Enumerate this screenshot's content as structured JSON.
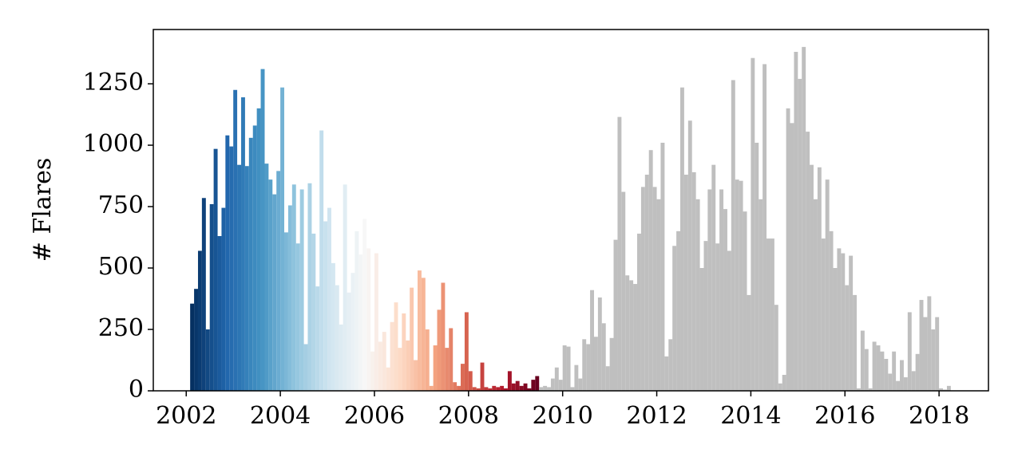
{
  "chart_data": {
    "type": "hist",
    "y_label": "# Flares",
    "xlim": [
      2001.3,
      2019.05
    ],
    "ylim": [
      0,
      1471
    ],
    "xticks": [
      2002,
      2004,
      2006,
      2008,
      2010,
      2012,
      2014,
      2016,
      2018
    ],
    "yticks": [
      0,
      250,
      500,
      750,
      1000,
      1250
    ],
    "series": [
      {
        "colormap": [
          "#053061",
          "#2166ac",
          "#4393c3",
          "#92c5de",
          "#d1e5f0",
          "#f7f7f7",
          "#fddbc7",
          "#f4a582",
          "#d6604d",
          "#b2182b",
          "#67001f"
        ],
        "bins": [
          2002.083,
          2002.167,
          2002.25,
          2002.333,
          2002.417,
          2002.5,
          2002.583,
          2002.667,
          2002.75,
          2002.833,
          2002.917,
          2003,
          2003.083,
          2003.167,
          2003.25,
          2003.333,
          2003.417,
          2003.5,
          2003.583,
          2003.667,
          2003.75,
          2003.833,
          2003.917,
          2004,
          2004.083,
          2004.167,
          2004.25,
          2004.333,
          2004.417,
          2004.5,
          2004.583,
          2004.667,
          2004.75,
          2004.833,
          2004.917,
          2005,
          2005.083,
          2005.167,
          2005.25,
          2005.333,
          2005.417,
          2005.5,
          2005.583,
          2005.667,
          2005.75,
          2005.833,
          2005.917,
          2006,
          2006.083,
          2006.167,
          2006.25,
          2006.333,
          2006.417,
          2006.5,
          2006.583,
          2006.667,
          2006.75,
          2006.833,
          2006.917,
          2007,
          2007.083,
          2007.167,
          2007.25,
          2007.333,
          2007.417,
          2007.5,
          2007.583,
          2007.667,
          2007.75,
          2007.833,
          2007.917,
          2008,
          2008.083,
          2008.167,
          2008.25,
          2008.333,
          2008.417,
          2008.5,
          2008.583,
          2008.667,
          2008.75,
          2008.833,
          2008.917,
          2009,
          2009.083,
          2009.167,
          2009.25,
          2009.333,
          2009.417,
          2009.5
        ],
        "values": [
          355,
          415,
          570,
          785,
          250,
          760,
          985,
          630,
          745,
          1040,
          995,
          1225,
          920,
          1195,
          915,
          1030,
          1080,
          1150,
          1310,
          925,
          860,
          800,
          895,
          1235,
          645,
          755,
          840,
          600,
          820,
          190,
          845,
          640,
          425,
          1060,
          690,
          745,
          520,
          430,
          270,
          840,
          400,
          480,
          650,
          555,
          700,
          580,
          160,
          560,
          200,
          240,
          95,
          280,
          360,
          175,
          315,
          205,
          420,
          125,
          490,
          460,
          250,
          20,
          185,
          330,
          440,
          175,
          255,
          35,
          20,
          110,
          320,
          80,
          15,
          10,
          115,
          15,
          10,
          20,
          15,
          20,
          10,
          80,
          30,
          40,
          20,
          30,
          10,
          45,
          60
        ]
      },
      {
        "color": "#bfbfbf",
        "bins": [
          2009.5,
          2009.583,
          2009.667,
          2009.75,
          2009.833,
          2009.917,
          2010,
          2010.083,
          2010.167,
          2010.25,
          2010.333,
          2010.417,
          2010.5,
          2010.583,
          2010.667,
          2010.75,
          2010.833,
          2010.917,
          2011,
          2011.083,
          2011.167,
          2011.25,
          2011.333,
          2011.417,
          2011.5,
          2011.583,
          2011.667,
          2011.75,
          2011.833,
          2011.917,
          2012,
          2012.083,
          2012.167,
          2012.25,
          2012.333,
          2012.417,
          2012.5,
          2012.583,
          2012.667,
          2012.75,
          2012.833,
          2012.917,
          2013,
          2013.083,
          2013.167,
          2013.25,
          2013.333,
          2013.417,
          2013.5,
          2013.583,
          2013.667,
          2013.75,
          2013.833,
          2013.917,
          2014,
          2014.083,
          2014.167,
          2014.25,
          2014.333,
          2014.417,
          2014.5,
          2014.583,
          2014.667,
          2014.75,
          2014.833,
          2014.917,
          2015,
          2015.083,
          2015.167,
          2015.25,
          2015.333,
          2015.417,
          2015.5,
          2015.583,
          2015.667,
          2015.75,
          2015.833,
          2015.917,
          2016,
          2016.083,
          2016.167,
          2016.25,
          2016.333,
          2016.417,
          2016.5,
          2016.583,
          2016.667,
          2016.75,
          2016.833,
          2016.917,
          2017,
          2017.083,
          2017.167,
          2017.25,
          2017.333,
          2017.417,
          2017.5,
          2017.583,
          2017.667,
          2017.75,
          2017.833,
          2017.917,
          2018,
          2018.083,
          2018.167,
          2018.25
        ],
        "values": [
          15,
          20,
          15,
          50,
          95,
          45,
          185,
          180,
          15,
          105,
          50,
          210,
          190,
          410,
          220,
          380,
          275,
          100,
          215,
          615,
          1115,
          810,
          470,
          450,
          435,
          640,
          830,
          880,
          980,
          830,
          780,
          1010,
          140,
          210,
          590,
          650,
          1235,
          880,
          1100,
          890,
          780,
          500,
          610,
          820,
          920,
          600,
          820,
          740,
          570,
          1265,
          860,
          855,
          730,
          390,
          1355,
          1010,
          780,
          1330,
          620,
          620,
          350,
          30,
          65,
          1150,
          1090,
          1380,
          1270,
          1400,
          1055,
          920,
          780,
          910,
          620,
          860,
          650,
          500,
          580,
          560,
          430,
          550,
          390,
          10,
          245,
          170,
          10,
          200,
          185,
          160,
          130,
          70,
          160,
          40,
          125,
          55,
          320,
          80,
          150,
          370,
          300,
          385,
          250,
          300,
          10,
          5,
          20
        ]
      }
    ]
  }
}
